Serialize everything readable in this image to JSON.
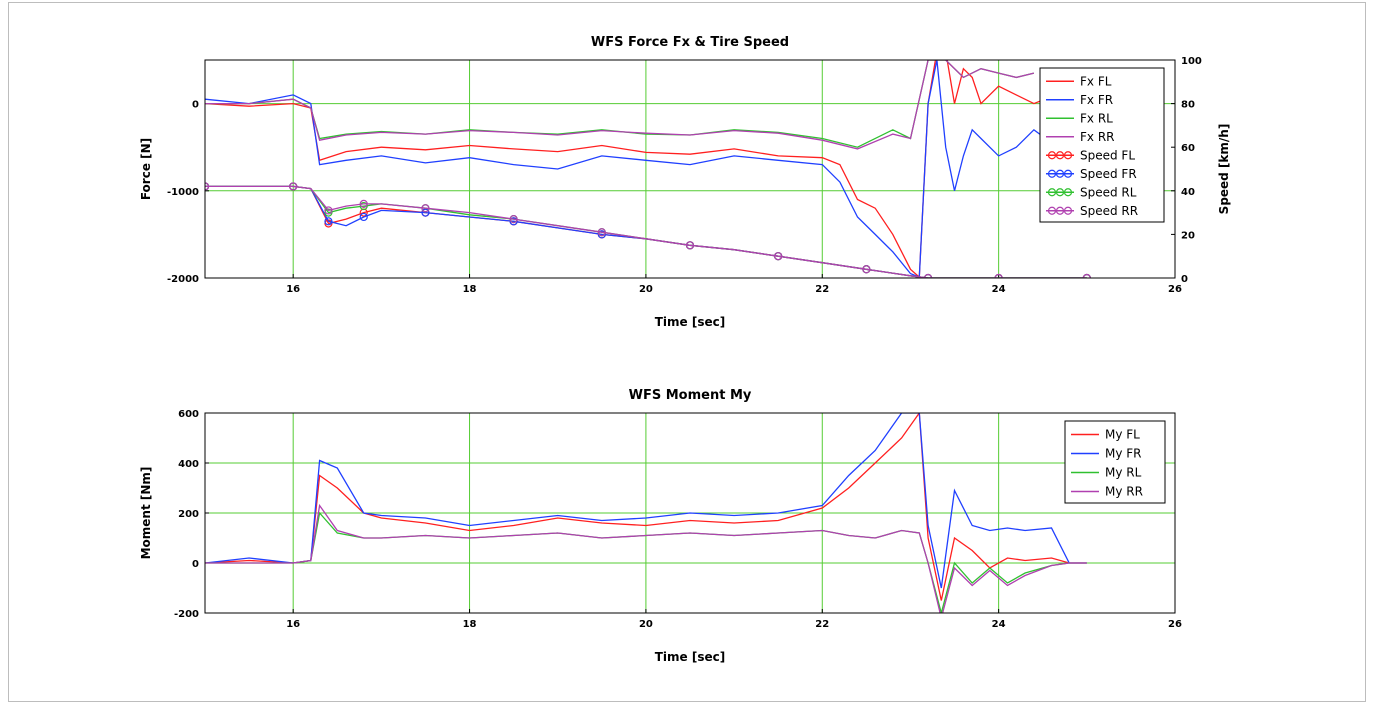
{
  "chart_data": [
    {
      "type": "line",
      "title": "WFS Force Fx & Tire Speed",
      "xlabel": "Time [sec]",
      "ylabel": "Force [N]",
      "ylabel_right": "Speed [km/h]",
      "xlim": [
        15,
        26
      ],
      "ylim": [
        -2000,
        500
      ],
      "ylim_right": [
        0,
        100
      ],
      "x_ticks": [
        "16",
        "18",
        "20",
        "22",
        "24",
        "26"
      ],
      "x_tick_values": [
        16,
        18,
        20,
        22,
        24,
        26
      ],
      "y_ticks": [
        "-2000",
        "-1000",
        "0"
      ],
      "y_tick_values": [
        -2000,
        -1000,
        0
      ],
      "y_ticks_right": [
        "0",
        "20",
        "40",
        "60",
        "80",
        "100"
      ],
      "y_tick_values_right": [
        0,
        20,
        40,
        60,
        80,
        100
      ],
      "grid": true,
      "legend_position": "top-right",
      "series": [
        {
          "name": "Fx FL",
          "axis": "left",
          "color": "#ff2020",
          "marker": "none",
          "x": [
            15.0,
            15.5,
            16.0,
            16.2,
            16.3,
            16.6,
            17.0,
            17.5,
            18.0,
            18.5,
            19.0,
            19.5,
            20.0,
            20.5,
            21.0,
            21.5,
            22.0,
            22.2,
            22.4,
            22.6,
            22.8,
            23.0,
            23.1,
            23.2,
            23.3,
            23.4,
            23.5,
            23.6,
            23.7,
            23.8,
            24.0,
            24.2,
            24.4,
            24.6,
            24.8
          ],
          "y": [
            0,
            -30,
            0,
            -50,
            -650,
            -550,
            -500,
            -530,
            -480,
            -520,
            -550,
            -480,
            -560,
            -580,
            -520,
            -600,
            -620,
            -700,
            -1100,
            -1200,
            -1500,
            -1900,
            -1990,
            0,
            600,
            600,
            0,
            400,
            300,
            0,
            200,
            100,
            0,
            80,
            0
          ]
        },
        {
          "name": "Fx FR",
          "axis": "left",
          "color": "#2040ff",
          "marker": "none",
          "x": [
            15.0,
            15.5,
            16.0,
            16.2,
            16.3,
            16.6,
            17.0,
            17.5,
            18.0,
            18.5,
            19.0,
            19.5,
            20.0,
            20.5,
            21.0,
            21.5,
            22.0,
            22.2,
            22.4,
            22.6,
            22.8,
            23.0,
            23.1,
            23.2,
            23.3,
            23.4,
            23.5,
            23.6,
            23.7,
            23.8,
            24.0,
            24.2,
            24.4,
            24.6,
            24.8
          ],
          "y": [
            50,
            0,
            100,
            0,
            -700,
            -650,
            -600,
            -680,
            -620,
            -700,
            -750,
            -600,
            -650,
            -700,
            -600,
            -650,
            -700,
            -900,
            -1300,
            -1500,
            -1700,
            -1950,
            -1990,
            0,
            500,
            -500,
            -1000,
            -600,
            -300,
            -400,
            -600,
            -500,
            -300,
            -450,
            -500
          ]
        },
        {
          "name": "Fx RL",
          "axis": "left",
          "color": "#30c030",
          "marker": "none",
          "x": [
            15.0,
            15.5,
            16.0,
            16.2,
            16.3,
            16.6,
            17.0,
            17.5,
            18.0,
            18.5,
            19.0,
            19.5,
            20.0,
            20.5,
            21.0,
            21.5,
            22.0,
            22.4,
            22.8,
            23.0,
            23.2,
            23.4,
            23.6,
            23.8,
            24.0,
            24.2,
            24.4
          ],
          "y": [
            0,
            0,
            50,
            -50,
            -400,
            -350,
            -320,
            -350,
            -300,
            -330,
            -350,
            -300,
            -350,
            -360,
            -300,
            -330,
            -400,
            -500,
            -300,
            -400,
            500,
            500,
            300,
            400,
            350,
            300,
            350
          ]
        },
        {
          "name": "Fx RR",
          "axis": "left",
          "color": "#b040b0",
          "marker": "none",
          "x": [
            15.0,
            15.5,
            16.0,
            16.2,
            16.3,
            16.6,
            17.0,
            17.5,
            18.0,
            18.5,
            19.0,
            19.5,
            20.0,
            20.5,
            21.0,
            21.5,
            22.0,
            22.4,
            22.8,
            23.0,
            23.2,
            23.4,
            23.6,
            23.8,
            24.0,
            24.2,
            24.4
          ],
          "y": [
            0,
            0,
            50,
            -50,
            -420,
            -360,
            -330,
            -350,
            -310,
            -330,
            -360,
            -310,
            -340,
            -360,
            -310,
            -340,
            -420,
            -520,
            -350,
            -400,
            500,
            500,
            300,
            400,
            350,
            300,
            350
          ]
        },
        {
          "name": "Speed FL",
          "axis": "right",
          "color": "#ff2020",
          "marker": "circle",
          "x": [
            15.0,
            15.5,
            16.0,
            16.2,
            16.4,
            16.6,
            16.8,
            17.0,
            17.5,
            18.0,
            18.5,
            19.0,
            19.5,
            20.0,
            20.5,
            21.0,
            21.5,
            22.0,
            22.5,
            23.0,
            23.2,
            23.5,
            24.0,
            24.5,
            25.0
          ],
          "y": [
            42,
            42,
            42,
            41,
            25,
            27,
            30,
            32,
            30,
            28,
            26,
            23,
            20,
            18,
            15,
            13,
            10,
            7,
            4,
            1,
            0,
            0,
            0,
            0,
            0
          ]
        },
        {
          "name": "Speed FR",
          "axis": "right",
          "color": "#2040ff",
          "marker": "circle",
          "x": [
            15.0,
            15.5,
            16.0,
            16.2,
            16.4,
            16.6,
            16.8,
            17.0,
            17.5,
            18.0,
            18.5,
            19.0,
            19.5,
            20.0,
            20.5,
            21.0,
            21.5,
            22.0,
            22.5,
            23.0,
            23.2,
            23.5,
            24.0,
            24.5,
            25.0
          ],
          "y": [
            42,
            42,
            42,
            41,
            26,
            24,
            28,
            31,
            30,
            28,
            26,
            23,
            20,
            18,
            15,
            13,
            10,
            7,
            4,
            1,
            0,
            0,
            0,
            0,
            0
          ]
        },
        {
          "name": "Speed RL",
          "axis": "right",
          "color": "#30c030",
          "marker": "circle",
          "x": [
            15.0,
            15.5,
            16.0,
            16.2,
            16.4,
            16.6,
            16.8,
            17.0,
            17.5,
            18.0,
            18.5,
            19.0,
            19.5,
            20.0,
            20.5,
            21.0,
            21.5,
            22.0,
            22.5,
            23.0,
            23.2,
            23.5,
            24.0,
            24.5,
            25.0
          ],
          "y": [
            42,
            42,
            42,
            41,
            30,
            32,
            33,
            34,
            32,
            29,
            27,
            24,
            21,
            18,
            15,
            13,
            10,
            7,
            4,
            1,
            0,
            0,
            0,
            0,
            0
          ]
        },
        {
          "name": "Speed RR",
          "axis": "right",
          "color": "#b040b0",
          "marker": "circle",
          "x": [
            15.0,
            15.5,
            16.0,
            16.2,
            16.4,
            16.6,
            16.8,
            17.0,
            17.5,
            18.0,
            18.5,
            19.0,
            19.5,
            20.0,
            20.5,
            21.0,
            21.5,
            22.0,
            22.5,
            23.0,
            23.2,
            23.5,
            24.0,
            24.5,
            25.0
          ],
          "y": [
            42,
            42,
            42,
            41,
            31,
            33,
            34,
            34,
            32,
            30,
            27,
            24,
            21,
            18,
            15,
            13,
            10,
            7,
            4,
            1,
            0,
            0,
            0,
            0,
            0
          ]
        }
      ]
    },
    {
      "type": "line",
      "title": "WFS Moment My",
      "xlabel": "Time [sec]",
      "ylabel": "Moment [Nm]",
      "xlim": [
        15,
        26
      ],
      "ylim": [
        -200,
        600
      ],
      "x_ticks": [
        "16",
        "18",
        "20",
        "22",
        "24",
        "26"
      ],
      "x_tick_values": [
        16,
        18,
        20,
        22,
        24,
        26
      ],
      "y_ticks": [
        "-200",
        "0",
        "200",
        "400",
        "600"
      ],
      "y_tick_values": [
        -200,
        0,
        200,
        400,
        600
      ],
      "grid": true,
      "legend_position": "top-right",
      "series": [
        {
          "name": "My FL",
          "color": "#ff2020",
          "x": [
            15.0,
            15.5,
            16.0,
            16.2,
            16.3,
            16.5,
            16.8,
            17.0,
            17.5,
            18.0,
            18.5,
            19.0,
            19.5,
            20.0,
            20.5,
            21.0,
            21.5,
            22.0,
            22.3,
            22.6,
            22.9,
            23.1,
            23.2,
            23.35,
            23.5,
            23.7,
            23.9,
            24.1,
            24.3,
            24.6,
            24.8,
            25.0
          ],
          "y": [
            0,
            10,
            0,
            10,
            350,
            300,
            200,
            180,
            160,
            130,
            150,
            180,
            160,
            150,
            170,
            160,
            170,
            220,
            300,
            400,
            500,
            600,
            100,
            -150,
            100,
            50,
            -20,
            20,
            10,
            20,
            0,
            0
          ]
        },
        {
          "name": "My FR",
          "color": "#2040ff",
          "x": [
            15.0,
            15.5,
            16.0,
            16.2,
            16.3,
            16.5,
            16.8,
            17.0,
            17.5,
            18.0,
            18.5,
            19.0,
            19.5,
            20.0,
            20.5,
            21.0,
            21.5,
            22.0,
            22.3,
            22.6,
            22.9,
            23.1,
            23.2,
            23.35,
            23.5,
            23.7,
            23.9,
            24.1,
            24.3,
            24.6,
            24.8,
            25.0
          ],
          "y": [
            0,
            20,
            0,
            10,
            410,
            380,
            200,
            190,
            180,
            150,
            170,
            190,
            170,
            180,
            200,
            190,
            200,
            230,
            350,
            450,
            600,
            600,
            150,
            -100,
            290,
            150,
            130,
            140,
            130,
            140,
            0,
            0
          ]
        },
        {
          "name": "My RL",
          "color": "#30c030",
          "x": [
            15.0,
            15.5,
            16.0,
            16.2,
            16.3,
            16.5,
            16.8,
            17.0,
            17.5,
            18.0,
            18.5,
            19.0,
            19.5,
            20.0,
            20.5,
            21.0,
            21.5,
            22.0,
            22.3,
            22.6,
            22.9,
            23.1,
            23.2,
            23.35,
            23.5,
            23.7,
            23.9,
            24.1,
            24.3,
            24.6,
            24.8,
            25.0
          ],
          "y": [
            0,
            0,
            0,
            10,
            200,
            120,
            100,
            100,
            110,
            100,
            110,
            120,
            100,
            110,
            120,
            110,
            120,
            130,
            110,
            100,
            130,
            120,
            0,
            -200,
            0,
            -80,
            -20,
            -80,
            -40,
            -10,
            0,
            0
          ]
        },
        {
          "name": "My RR",
          "color": "#b040b0",
          "x": [
            15.0,
            15.5,
            16.0,
            16.2,
            16.3,
            16.5,
            16.8,
            17.0,
            17.5,
            18.0,
            18.5,
            19.0,
            19.5,
            20.0,
            20.5,
            21.0,
            21.5,
            22.0,
            22.3,
            22.6,
            22.9,
            23.1,
            23.2,
            23.35,
            23.5,
            23.7,
            23.9,
            24.1,
            24.3,
            24.6,
            24.8,
            25.0
          ],
          "y": [
            0,
            0,
            0,
            10,
            230,
            130,
            100,
            100,
            110,
            100,
            110,
            120,
            100,
            110,
            120,
            110,
            120,
            130,
            110,
            100,
            130,
            120,
            0,
            -220,
            -20,
            -90,
            -30,
            -90,
            -50,
            -10,
            0,
            0
          ]
        }
      ]
    }
  ]
}
